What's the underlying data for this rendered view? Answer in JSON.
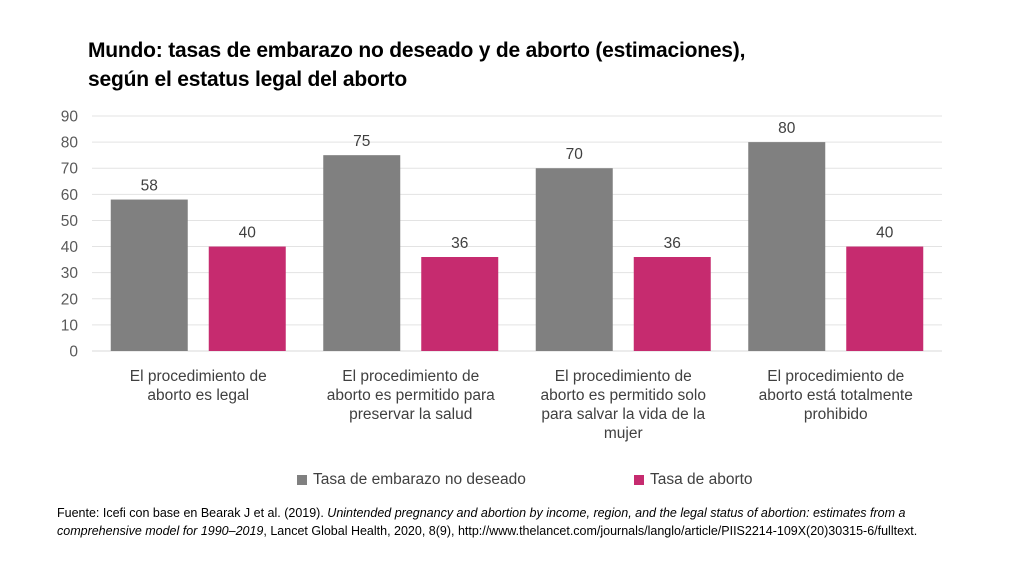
{
  "chart_data": {
    "type": "bar",
    "title": "Mundo: tasas de embarazo no deseado y de aborto (estimaciones), según el estatus legal del aborto",
    "title_lines": [
      "Mundo: tasas de embarazo no deseado y de aborto (estimaciones),",
      "según el estatus legal del aborto"
    ],
    "xlabel": "",
    "ylabel": "",
    "ylim": [
      0,
      90
    ],
    "yticks": [
      0,
      10,
      20,
      30,
      40,
      50,
      60,
      70,
      80,
      90
    ],
    "grid": true,
    "legend_position": "bottom",
    "categories": [
      "El procedimiento de aborto es legal",
      "El procedimiento de aborto es permitido para preservar la salud",
      "El procedimiento de aborto es permitido solo para salvar la vida de la mujer",
      "El procedimiento de aborto está totalmente prohibido"
    ],
    "category_label_lines": [
      [
        "El procedimiento de",
        "aborto es legal"
      ],
      [
        "El procedimiento de",
        "aborto es permitido para",
        "preservar la salud"
      ],
      [
        "El procedimiento de",
        "aborto es permitido solo",
        "para salvar la vida de la",
        "mujer"
      ],
      [
        "El procedimiento de",
        "aborto está totalmente",
        "prohibido"
      ]
    ],
    "series": [
      {
        "name": "Tasa de embarazo no deseado",
        "color": "#808080",
        "values": [
          58,
          75,
          70,
          80
        ]
      },
      {
        "name": "Tasa de aborto",
        "color": "#C62B6F",
        "values": [
          40,
          36,
          36,
          40
        ]
      }
    ]
  },
  "source": {
    "prefix": "Fuente: Icefi con base en Bearak J et al. (2019). ",
    "italic": "Unintended pregnancy and abortion by income, region, and the legal status of abortion: estimates from a comprehensive model for 1990–2019",
    "suffix": ", Lancet Global Health, 2020, 8(9), http://www.thelancet.com/journals/langlo/article/PIIS2214-109X(20)30315-6/fulltext."
  }
}
